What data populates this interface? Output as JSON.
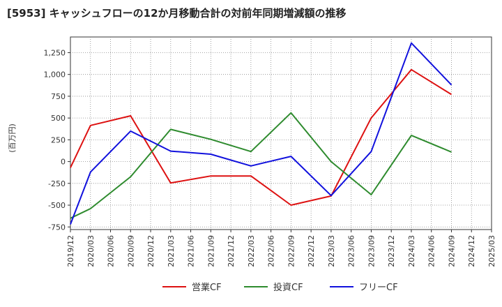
{
  "chart_data": {
    "type": "line",
    "title": "[5953]  キャッシュフローの12か月移動合計の対前年同期増減額の推移",
    "ylabel": "(百万円)",
    "xlabel": "",
    "ylim": [
      -780,
      1430
    ],
    "yticks": [
      -750,
      -500,
      -250,
      0,
      250,
      500,
      750,
      1000,
      1250
    ],
    "ytick_labels": [
      "-750",
      "-500",
      "-250",
      "0",
      "250",
      "500",
      "750",
      "1,000",
      "1,250"
    ],
    "categories": [
      "2019/12",
      "2020/03",
      "2020/06",
      "2020/09",
      "2020/12",
      "2021/03",
      "2021/06",
      "2021/09",
      "2021/12",
      "2022/03",
      "2022/06",
      "2022/09",
      "2022/12",
      "2023/03",
      "2023/06",
      "2023/09",
      "2023/12",
      "2024/03",
      "2024/06",
      "2024/09",
      "2024/12",
      "2025/03"
    ],
    "grid": true,
    "legend_position": "bottom",
    "series": [
      {
        "name": "営業CF",
        "color": "#dd1111",
        "points": [
          [
            0,
            -70
          ],
          [
            1,
            415
          ],
          [
            3,
            525
          ],
          [
            5,
            -245
          ],
          [
            7,
            -165
          ],
          [
            9,
            -165
          ],
          [
            11,
            -500
          ],
          [
            13,
            -395
          ],
          [
            15,
            500
          ],
          [
            17,
            1055
          ],
          [
            19,
            770
          ]
        ]
      },
      {
        "name": "投資CF",
        "color": "#2e8b2e",
        "points": [
          [
            0,
            -650
          ],
          [
            1,
            -540
          ],
          [
            3,
            -175
          ],
          [
            5,
            370
          ],
          [
            7,
            255
          ],
          [
            9,
            115
          ],
          [
            11,
            560
          ],
          [
            13,
            0
          ],
          [
            15,
            -380
          ],
          [
            17,
            300
          ],
          [
            19,
            110
          ]
        ]
      },
      {
        "name": "フリーCF",
        "color": "#1111dd",
        "points": [
          [
            0,
            -720
          ],
          [
            1,
            -120
          ],
          [
            3,
            350
          ],
          [
            5,
            120
          ],
          [
            7,
            85
          ],
          [
            9,
            -50
          ],
          [
            11,
            60
          ],
          [
            13,
            -390
          ],
          [
            15,
            115
          ],
          [
            17,
            1360
          ],
          [
            19,
            880
          ]
        ]
      }
    ]
  }
}
